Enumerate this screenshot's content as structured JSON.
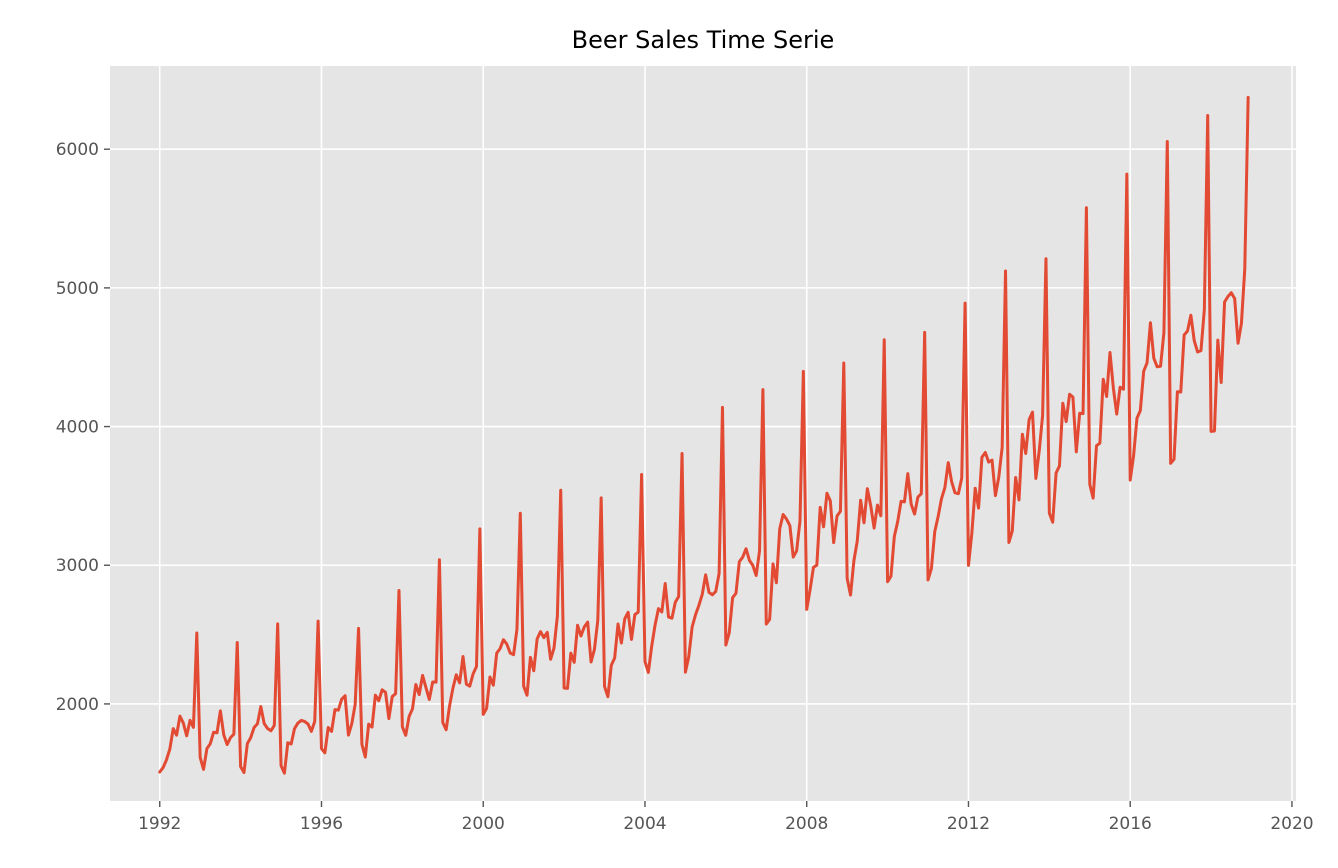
{
  "chart_data": {
    "type": "line",
    "title": "Beer Sales Time Serie",
    "xlabel": "",
    "ylabel": "",
    "x_start": "1992-01",
    "x_step_months": 1,
    "xlim": [
      1990.77,
      2020.1
    ],
    "ylim": [
      1300,
      6600
    ],
    "x_ticks": [
      1992,
      1996,
      2000,
      2004,
      2008,
      2012,
      2016,
      2020
    ],
    "x_tick_labels": [
      "1992",
      "1996",
      "2000",
      "2004",
      "2008",
      "2012",
      "2016",
      "2020"
    ],
    "y_ticks": [
      2000,
      3000,
      4000,
      5000,
      6000
    ],
    "y_tick_labels": [
      "2000",
      "3000",
      "4000",
      "5000",
      "6000"
    ],
    "grid": true,
    "colors": {
      "line": "#E24A33",
      "background": "#E5E5E5",
      "grid": "#FFFFFF",
      "tick_text": "#555555"
    },
    "series": [
      {
        "values": [
          1509,
          1541,
          1597,
          1675,
          1822,
          1775,
          1912,
          1862,
          1770,
          1882,
          1831,
          2511,
          1614,
          1528,
          1678,
          1713,
          1796,
          1792,
          1950,
          1777,
          1707,
          1757,
          1782,
          2443,
          1548,
          1505,
          1714,
          1757,
          1830,
          1857,
          1981,
          1858,
          1823,
          1806,
          1845,
          2577,
          1555,
          1501,
          1720,
          1711,
          1822,
          1862,
          1881,
          1874,
          1855,
          1802,
          1874,
          2597,
          1678,
          1647,
          1830,
          1802,
          1959,
          1955,
          2034,
          2059,
          1775,
          1858,
          1997,
          2545,
          1708,
          1617,
          1854,
          1833,
          2063,
          2023,
          2102,
          2084,
          1894,
          2053,
          2074,
          2818,
          1835,
          1774,
          1909,
          1964,
          2140,
          2067,
          2206,
          2118,
          2032,
          2158,
          2157,
          3040,
          1866,
          1814,
          1984,
          2113,
          2210,
          2152,
          2342,
          2142,
          2128,
          2217,
          2270,
          3262,
          1925,
          1968,
          2194,
          2135,
          2366,
          2399,
          2463,
          2431,
          2367,
          2355,
          2537,
          3375,
          2128,
          2063,
          2336,
          2239,
          2469,
          2521,
          2478,
          2516,
          2322,
          2403,
          2631,
          3541,
          2115,
          2112,
          2366,
          2300,
          2567,
          2490,
          2556,
          2590,
          2302,
          2393,
          2603,
          3486,
          2126,
          2052,
          2278,
          2331,
          2576,
          2439,
          2614,
          2661,
          2465,
          2644,
          2662,
          3654,
          2306,
          2227,
          2417,
          2569,
          2687,
          2663,
          2868,
          2626,
          2618,
          2733,
          2775,
          3806,
          2229,
          2342,
          2555,
          2643,
          2711,
          2790,
          2931,
          2804,
          2787,
          2811,
          2941,
          4138,
          2425,
          2513,
          2766,
          2798,
          3026,
          3058,
          3119,
          3035,
          2999,
          2926,
          3103,
          4266,
          2576,
          2610,
          3010,
          2874,
          3264,
          3366,
          3333,
          3286,
          3059,
          3103,
          3318,
          4398,
          2682,
          2824,
          2985,
          3000,
          3417,
          3277,
          3519,
          3464,
          3163,
          3355,
          3389,
          4458,
          2906,
          2785,
          3032,
          3175,
          3469,
          3306,
          3552,
          3429,
          3268,
          3434,
          3357,
          4626,
          2881,
          2921,
          3208,
          3315,
          3461,
          3457,
          3661,
          3440,
          3369,
          3492,
          3516,
          4679,
          2894,
          2976,
          3243,
          3352,
          3480,
          3560,
          3740,
          3603,
          3522,
          3516,
          3628,
          4890,
          2999,
          3230,
          3555,
          3412,
          3779,
          3813,
          3744,
          3758,
          3502,
          3636,
          3850,
          5122,
          3164,
          3247,
          3633,
          3471,
          3945,
          3806,
          4050,
          4104,
          3626,
          3825,
          4080,
          5210,
          3376,
          3310,
          3665,
          3716,
          4168,
          4036,
          4233,
          4212,
          3818,
          4096,
          4093,
          5578,
          3584,
          3484,
          3862,
          3880,
          4341,
          4217,
          4534,
          4277,
          4090,
          4284,
          4269,
          5820,
          3614,
          3789,
          4060,
          4115,
          4399,
          4460,
          4749,
          4493,
          4431,
          4435,
          4677,
          6056,
          3735,
          3764,
          4251,
          4249,
          4660,
          4689,
          4803,
          4619,
          4538,
          4548,
          4843,
          6243,
          3965,
          3968,
          4623,
          4318,
          4898,
          4938,
          4965,
          4923,
          4601,
          4743,
          5136,
          6374
        ]
      }
    ]
  }
}
